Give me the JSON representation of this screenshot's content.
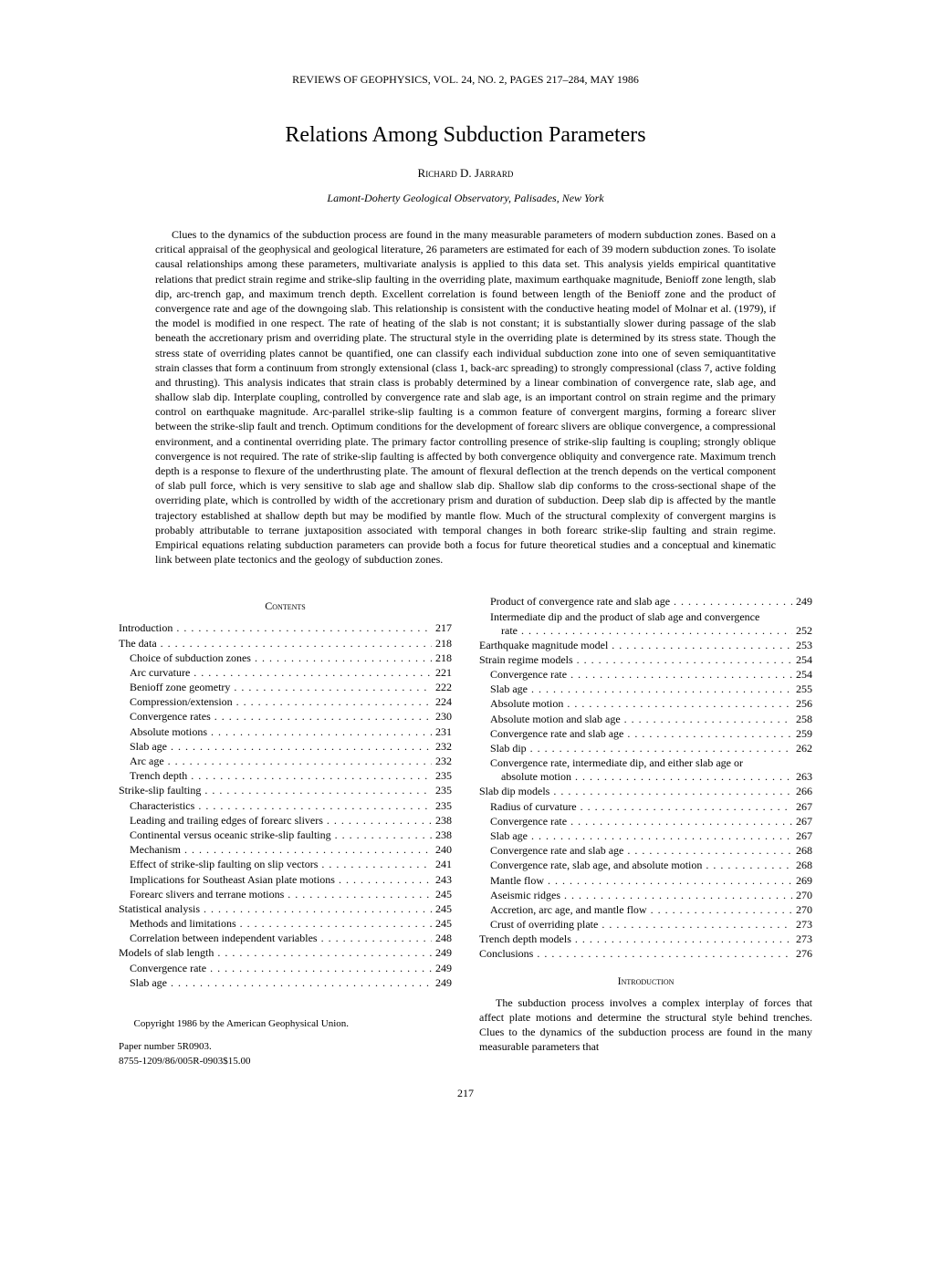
{
  "header": "REVIEWS OF GEOPHYSICS, VOL. 24, NO. 2, PAGES 217–284, MAY 1986",
  "title": "Relations Among Subduction Parameters",
  "author": "Richard D. Jarrard",
  "affiliation": "Lamont-Doherty Geological Observatory, Palisades, New York",
  "abstract": "Clues to the dynamics of the subduction process are found in the many measurable parameters of modern subduction zones. Based on a critical appraisal of the geophysical and geological literature, 26 parameters are estimated for each of 39 modern subduction zones. To isolate causal relationships among these parameters, multivariate analysis is applied to this data set. This analysis yields empirical quantitative relations that predict strain regime and strike-slip faulting in the overriding plate, maximum earthquake magnitude, Benioff zone length, slab dip, arc-trench gap, and maximum trench depth. Excellent correlation is found between length of the Benioff zone and the product of convergence rate and age of the downgoing slab. This relationship is consistent with the conductive heating model of Molnar et al. (1979), if the model is modified in one respect. The rate of heating of the slab is not constant; it is substantially slower during passage of the slab beneath the accretionary prism and overriding plate. The structural style in the overriding plate is determined by its stress state. Though the stress state of overriding plates cannot be quantified, one can classify each individual subduction zone into one of seven semiquantitative strain classes that form a continuum from strongly extensional (class 1, back-arc spreading) to strongly compressional (class 7, active folding and thrusting). This analysis indicates that strain class is probably determined by a linear combination of convergence rate, slab age, and shallow slab dip. Interplate coupling, controlled by convergence rate and slab age, is an important control on strain regime and the primary control on earthquake magnitude. Arc-parallel strike-slip faulting is a common feature of convergent margins, forming a forearc sliver between the strike-slip fault and trench. Optimum conditions for the development of forearc slivers are oblique convergence, a compressional environment, and a continental overriding plate. The primary factor controlling presence of strike-slip faulting is coupling; strongly oblique convergence is not required. The rate of strike-slip faulting is affected by both convergence obliquity and convergence rate. Maximum trench depth is a response to flexure of the underthrusting plate. The amount of flexural deflection at the trench depends on the vertical component of slab pull force, which is very sensitive to slab age and shallow slab dip. Shallow slab dip conforms to the cross-sectional shape of the overriding plate, which is controlled by width of the accretionary prism and duration of subduction. Deep slab dip is affected by the mantle trajectory established at shallow depth but may be modified by mantle flow. Much of the structural complexity of convergent margins is probably attributable to terrane juxtaposition associated with temporal changes in both forearc strike-slip faulting and strain regime. Empirical equations relating subduction parameters can provide both a focus for future theoretical studies and a conceptual and kinematic link between plate tectonics and the geology of subduction zones.",
  "contents_heading": "Contents",
  "intro_heading": "Introduction",
  "toc_left": [
    {
      "label": "Introduction",
      "page": "217",
      "indent": 0
    },
    {
      "label": "The data",
      "page": "218",
      "indent": 0
    },
    {
      "label": "Choice of subduction zones",
      "page": "218",
      "indent": 1
    },
    {
      "label": "Arc curvature",
      "page": "221",
      "indent": 1
    },
    {
      "label": "Benioff zone geometry",
      "page": "222",
      "indent": 1
    },
    {
      "label": "Compression/extension",
      "page": "224",
      "indent": 1
    },
    {
      "label": "Convergence rates",
      "page": "230",
      "indent": 1
    },
    {
      "label": "Absolute motions",
      "page": "231",
      "indent": 1
    },
    {
      "label": "Slab age",
      "page": "232",
      "indent": 1
    },
    {
      "label": "Arc age",
      "page": "232",
      "indent": 1
    },
    {
      "label": "Trench depth",
      "page": "235",
      "indent": 1
    },
    {
      "label": "Strike-slip faulting",
      "page": "235",
      "indent": 0
    },
    {
      "label": "Characteristics",
      "page": "235",
      "indent": 1
    },
    {
      "label": "Leading and trailing edges of forearc slivers",
      "page": "238",
      "indent": 1
    },
    {
      "label": "Continental versus oceanic strike-slip faulting",
      "page": "238",
      "indent": 1
    },
    {
      "label": "Mechanism",
      "page": "240",
      "indent": 1
    },
    {
      "label": "Effect of strike-slip faulting on slip vectors",
      "page": "241",
      "indent": 1
    },
    {
      "label": "Implications for Southeast Asian plate motions",
      "page": "243",
      "indent": 1
    },
    {
      "label": "Forearc slivers and terrane motions",
      "page": "245",
      "indent": 1
    },
    {
      "label": "Statistical analysis",
      "page": "245",
      "indent": 0
    },
    {
      "label": "Methods and limitations",
      "page": "245",
      "indent": 1
    },
    {
      "label": "Correlation between independent variables",
      "page": "248",
      "indent": 1
    },
    {
      "label": "Models of slab length",
      "page": "249",
      "indent": 0
    },
    {
      "label": "Convergence rate",
      "page": "249",
      "indent": 1
    },
    {
      "label": "Slab age",
      "page": "249",
      "indent": 1
    }
  ],
  "toc_right": [
    {
      "label": "Product of convergence rate and slab age",
      "page": "249",
      "indent": 1
    },
    {
      "label": "Intermediate dip and the product of slab age and convergence",
      "secondLabel": "rate",
      "page": "252",
      "indent": 1,
      "wrap": true
    },
    {
      "label": "Earthquake magnitude model",
      "page": "253",
      "indent": 0
    },
    {
      "label": "Strain regime models",
      "page": "254",
      "indent": 0
    },
    {
      "label": "Convergence rate",
      "page": "254",
      "indent": 1
    },
    {
      "label": "Slab age",
      "page": "255",
      "indent": 1
    },
    {
      "label": "Absolute motion",
      "page": "256",
      "indent": 1
    },
    {
      "label": "Absolute motion and slab age",
      "page": "258",
      "indent": 1
    },
    {
      "label": "Convergence rate and slab age",
      "page": "259",
      "indent": 1
    },
    {
      "label": "Slab dip",
      "page": "262",
      "indent": 1
    },
    {
      "label": "Convergence rate, intermediate dip, and either slab age or",
      "secondLabel": "absolute motion",
      "page": "263",
      "indent": 1,
      "wrap": true
    },
    {
      "label": "Slab dip models",
      "page": "266",
      "indent": 0
    },
    {
      "label": "Radius of curvature",
      "page": "267",
      "indent": 1
    },
    {
      "label": "Convergence rate",
      "page": "267",
      "indent": 1
    },
    {
      "label": "Slab age",
      "page": "267",
      "indent": 1
    },
    {
      "label": "Convergence rate and slab age",
      "page": "268",
      "indent": 1
    },
    {
      "label": "Convergence rate, slab age, and absolute motion",
      "page": "268",
      "indent": 1
    },
    {
      "label": "Mantle flow",
      "page": "269",
      "indent": 1
    },
    {
      "label": "Aseismic ridges",
      "page": "270",
      "indent": 1
    },
    {
      "label": "Accretion, arc age, and mantle flow",
      "page": "270",
      "indent": 1
    },
    {
      "label": "Crust of overriding plate",
      "page": "273",
      "indent": 1
    },
    {
      "label": "Trench depth models",
      "page": "273",
      "indent": 0
    },
    {
      "label": "Conclusions",
      "page": "276",
      "indent": 0
    }
  ],
  "intro_text": "The subduction process involves a complex interplay of forces that affect plate motions and determine the structural style behind trenches. Clues to the dynamics of the subduction process are found in the many measurable parameters that",
  "copyright": "Copyright 1986 by the American Geophysical Union.",
  "paper_number": "Paper number 5R0903.",
  "issn": "8755-1209/86/005R-0903$15.00",
  "page_number": "217"
}
